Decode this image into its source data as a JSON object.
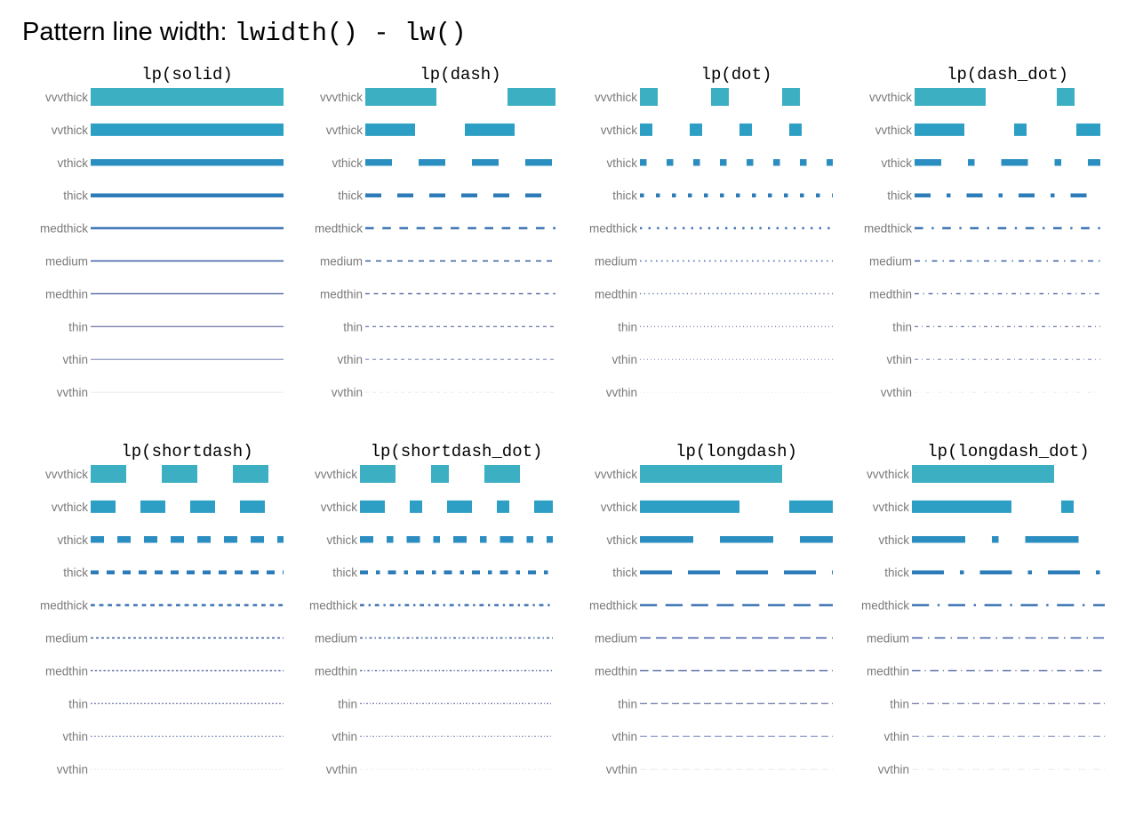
{
  "title": {
    "prefix": "Pattern line width: ",
    "code": "lwidth() - lw()"
  },
  "chart_data": {
    "type": "line-pattern-grid",
    "row_labels": [
      "vvvthick",
      "vvthick",
      "vthick",
      "thick",
      "medthick",
      "medium",
      "medthin",
      "thin",
      "vthin",
      "vvthin"
    ],
    "line_widths": [
      20,
      14,
      7.5,
      4.5,
      2.4,
      1.5,
      1.2,
      1.0,
      0.8,
      0.5
    ],
    "row_colors": [
      "#3DAFC3",
      "#2E9FC4",
      "#2B8EC0",
      "#2B7CB8",
      "#2E6AAE",
      "#3A5DA3",
      "#3F5696",
      "#4A5590",
      "#5A6BA3",
      "#D5D9E0"
    ],
    "panels": [
      {
        "title": "lp(solid)",
        "pattern": "solid"
      },
      {
        "title": "lp(dash)",
        "pattern": "dash"
      },
      {
        "title": "lp(dot)",
        "pattern": "dot"
      },
      {
        "title": "lp(dash_dot)",
        "pattern": "dash_dot"
      },
      {
        "title": "lp(shortdash)",
        "pattern": "shortdash"
      },
      {
        "title": "lp(shortdash_dot)",
        "pattern": "shortdash_dot"
      },
      {
        "title": "lp(longdash)",
        "pattern": "longdash"
      },
      {
        "title": "lp(longdash_dot)",
        "pattern": "longdash_dot"
      }
    ]
  }
}
